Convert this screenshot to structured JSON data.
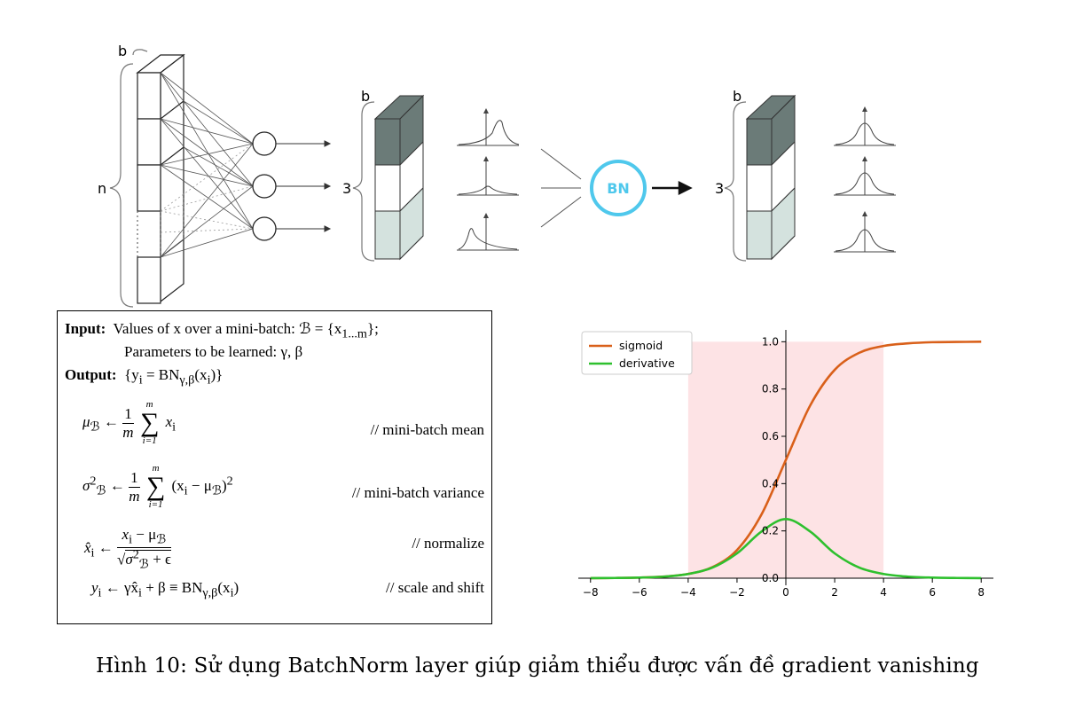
{
  "diagram": {
    "label_b1": "b",
    "label_n": "n",
    "label_b2": "b",
    "label_3a": "3",
    "bn_label": "BN",
    "label_b3": "b",
    "label_3b": "3",
    "colors": {
      "dark": "#6b7b78",
      "white": "#ffffff",
      "light": "#d4e2de",
      "bn": "#4fc8ec"
    }
  },
  "algorithm": {
    "input_label": "Input:",
    "input_text": "Values of x over a mini-batch: ℬ = {x",
    "input_sub": "1...m",
    "input_end": "};",
    "params_text": "Parameters to be learned: γ, β",
    "output_label": "Output:",
    "output_text": "{y",
    "output_sub": "i",
    "output_mid": " = BN",
    "output_sub2": "γ,β",
    "output_end": "(x",
    "output_end_sub": "i",
    "output_close": ")}",
    "mean_lhs": "μ",
    "mean_lhs_sub": "ℬ",
    "mean_arrow": " ← ",
    "one": "1",
    "m": "m",
    "sum_top": "m",
    "sum_sym": "∑",
    "sum_bottom": "i=1",
    "mean_term": "x",
    "mean_term_sub": "i",
    "mean_comment": "// mini-batch mean",
    "var_lhs": "σ",
    "var_lhs_sup": "2",
    "var_lhs_sub": "ℬ",
    "var_term": "(x",
    "var_term_sub": "i",
    "var_term_mid": " − μ",
    "var_term_sub2": "ℬ",
    "var_term_end": ")",
    "var_term_sup": "2",
    "var_comment": "// mini-batch variance",
    "norm_lhs": "x̂",
    "norm_lhs_sub": "i",
    "norm_num": "x",
    "norm_num_sub": "i",
    "norm_num_mid": " − μ",
    "norm_num_sub2": "ℬ",
    "norm_den": "√",
    "norm_den_inner": "σ",
    "norm_den_sup": "2",
    "norm_den_sub": "ℬ",
    "norm_den_end": " + ϵ",
    "norm_comment": "// normalize",
    "scale_lhs": "y",
    "scale_lhs_sub": "i",
    "scale_rhs": " ← γx̂",
    "scale_rhs_sub": "i",
    "scale_rhs_mid": " + β ≡ BN",
    "scale_rhs_sub2": "γ,β",
    "scale_rhs_end": "(x",
    "scale_rhs_end_sub": "i",
    "scale_rhs_close": ")",
    "scale_comment": "// scale and shift"
  },
  "chart_data": {
    "type": "line",
    "title": "",
    "xlabel": "",
    "ylabel": "",
    "xlim": [
      -8.5,
      8.5
    ],
    "ylim": [
      -0.03,
      1.05
    ],
    "xticks": [
      -8,
      -6,
      -4,
      -2,
      0,
      2,
      4,
      6,
      8
    ],
    "xtick_labels": [
      "−8",
      "−6",
      "−4",
      "−2",
      "0",
      "2",
      "4",
      "6",
      "8"
    ],
    "yticks": [
      0.0,
      0.2,
      0.4,
      0.6,
      0.8,
      1.0
    ],
    "ytick_labels": [
      "0.0",
      "0.2",
      "0.4",
      "0.6",
      "0.8",
      "1.0"
    ],
    "shaded_region": {
      "x": [
        -4,
        4
      ],
      "y": [
        0,
        1
      ],
      "color": "#fde0e2"
    },
    "legend": "top-left",
    "grid": false,
    "series": [
      {
        "name": "sigmoid",
        "color": "#d9601a",
        "x": [
          -8,
          -7,
          -6,
          -5,
          -4,
          -3,
          -2,
          -1,
          0,
          1,
          2,
          3,
          4,
          5,
          6,
          7,
          8
        ],
        "y": [
          0.0003,
          0.0009,
          0.0025,
          0.0067,
          0.018,
          0.047,
          0.119,
          0.269,
          0.5,
          0.731,
          0.881,
          0.953,
          0.982,
          0.993,
          0.998,
          0.999,
          1.0
        ]
      },
      {
        "name": "derivative",
        "color": "#2ec02e",
        "x": [
          -8,
          -7,
          -6,
          -5,
          -4,
          -3,
          -2,
          -1,
          0,
          1,
          2,
          3,
          4,
          5,
          6,
          7,
          8
        ],
        "y": [
          0.0003,
          0.0009,
          0.0025,
          0.0066,
          0.0177,
          0.0452,
          0.105,
          0.197,
          0.25,
          0.197,
          0.105,
          0.0452,
          0.0177,
          0.0066,
          0.0025,
          0.0009,
          0.0003
        ]
      }
    ]
  },
  "caption": "Hình 10: Sử dụng BatchNorm layer giúp giảm thiểu được vấn đề gradient vanishing"
}
